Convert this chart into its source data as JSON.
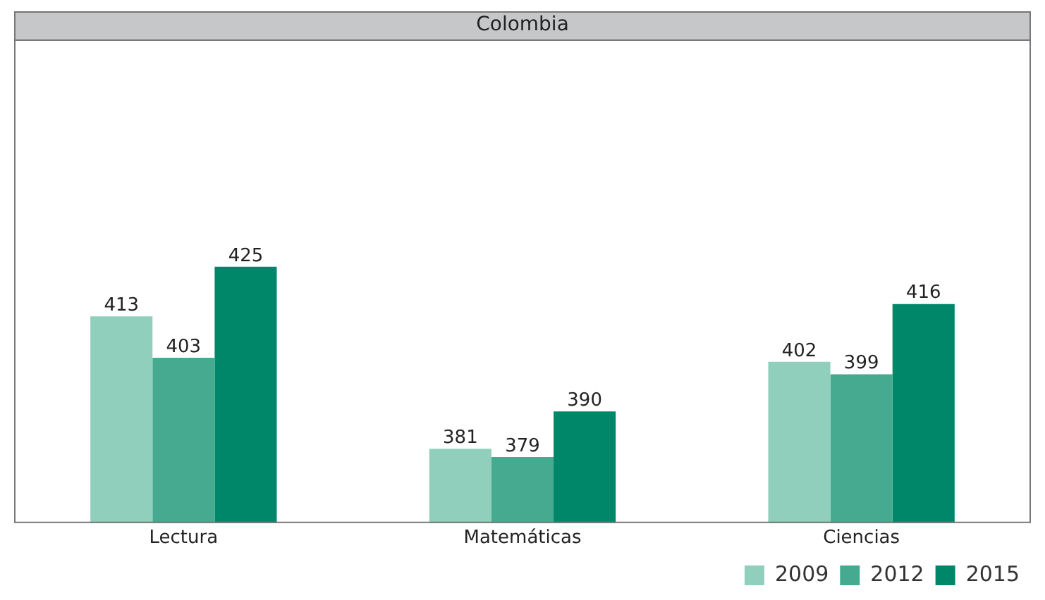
{
  "chart_data": {
    "type": "bar",
    "title": "Colombia",
    "categories": [
      "Lectura",
      "Matemáticas",
      "Ciencias"
    ],
    "series": [
      {
        "name": "2009",
        "color": "#8fcfbb",
        "values": [
          413,
          381,
          402
        ]
      },
      {
        "name": "2012",
        "color": "#45aa8f",
        "values": [
          403,
          379,
          399
        ]
      },
      {
        "name": "2015",
        "color": "#00876a",
        "values": [
          425,
          390,
          416
        ]
      }
    ],
    "ylim": [
      363,
      480
    ],
    "tick_labels": "x",
    "data_labels": true,
    "grid": false,
    "legend": "bottom right"
  }
}
